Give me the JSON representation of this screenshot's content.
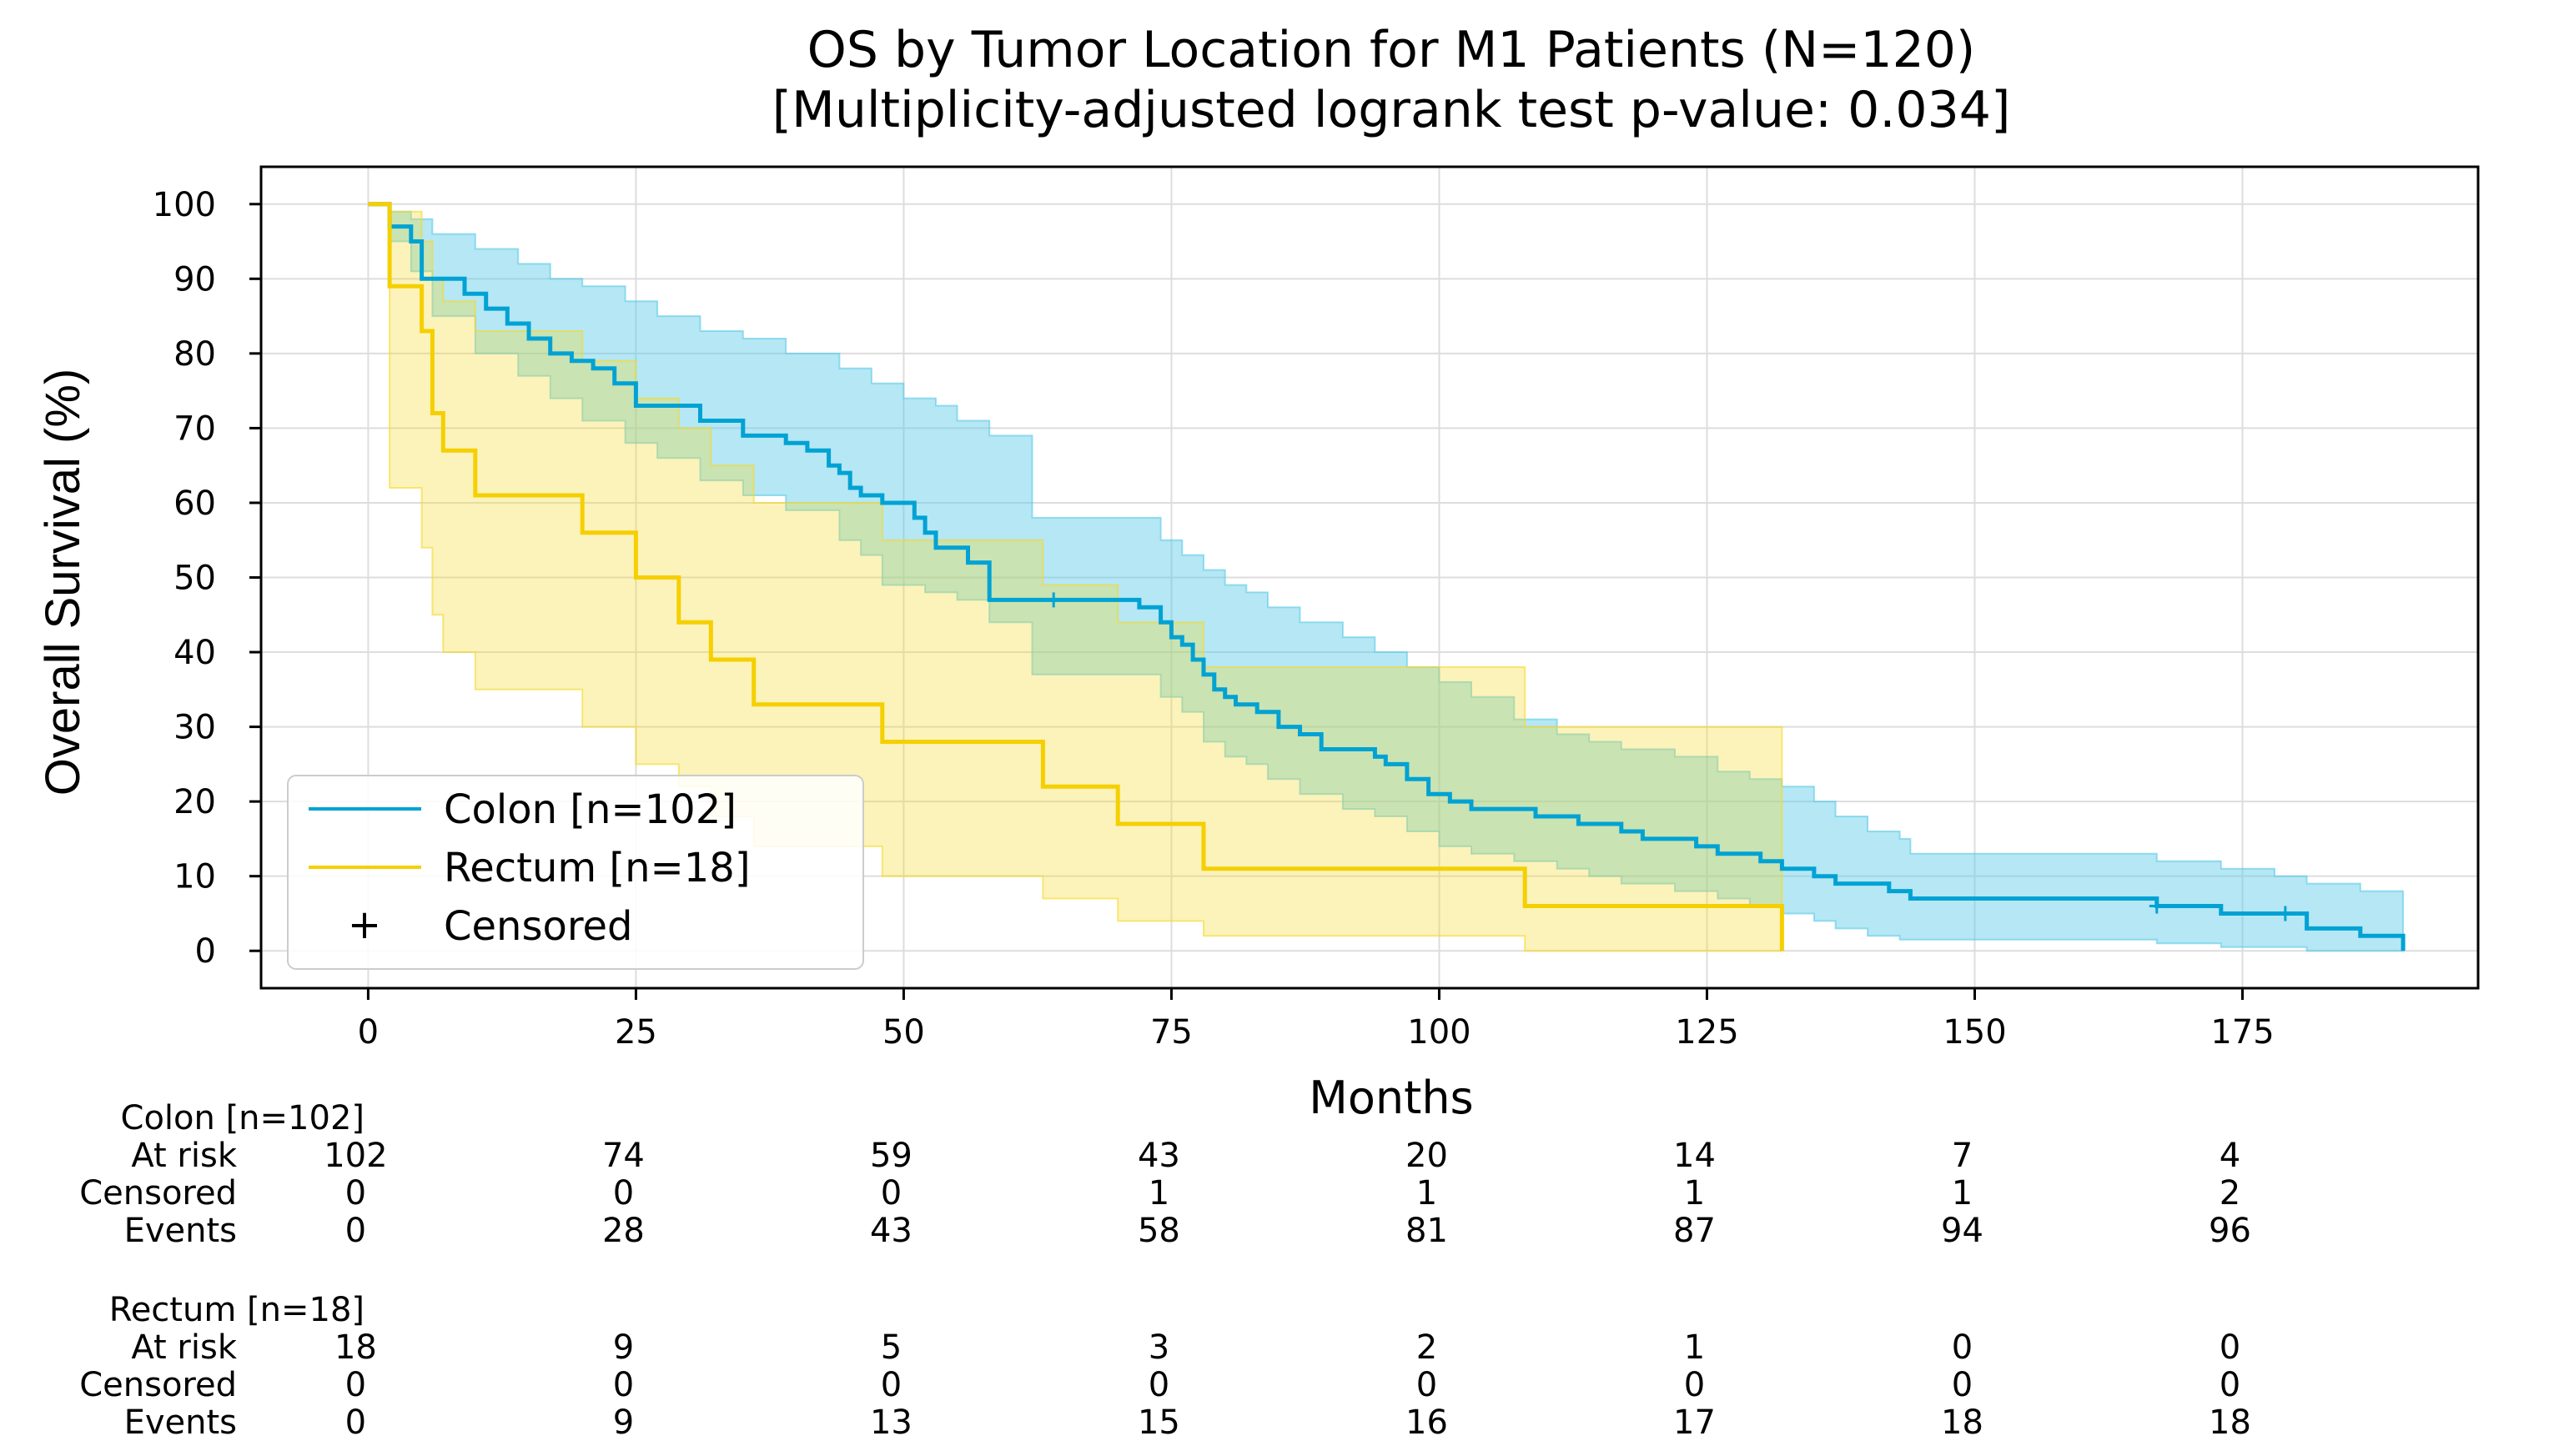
{
  "chart_data": {
    "type": "line",
    "subtype": "kaplan-meier",
    "title": "OS by Tumor Location for M1 Patients (N=120)",
    "subtitle": "[Multiplicity-adjusted logrank test p-value: 0.034]",
    "xlabel": "Months",
    "ylabel": "Overall Survival (%)",
    "xlim": [
      -10,
      197
    ],
    "ylim": [
      -5,
      105
    ],
    "xticks": [
      0,
      25,
      50,
      75,
      100,
      125,
      150,
      175
    ],
    "yticks": [
      0,
      10,
      20,
      30,
      40,
      50,
      60,
      70,
      80,
      90,
      100
    ],
    "grid": true,
    "legend_position": "lower-left",
    "series": [
      {
        "name": "Colon [n=102]",
        "color": "#00a2d3",
        "band_color": "#5ccae8",
        "steps": [
          [
            0,
            100
          ],
          [
            2,
            97
          ],
          [
            4,
            95
          ],
          [
            5,
            90
          ],
          [
            9,
            88
          ],
          [
            11,
            86
          ],
          [
            13,
            84
          ],
          [
            15,
            82
          ],
          [
            17,
            80
          ],
          [
            19,
            79
          ],
          [
            21,
            78
          ],
          [
            23,
            76
          ],
          [
            25,
            73
          ],
          [
            31,
            71
          ],
          [
            35,
            69
          ],
          [
            39,
            68
          ],
          [
            41,
            67
          ],
          [
            43,
            65
          ],
          [
            44,
            64
          ],
          [
            45,
            62
          ],
          [
            46,
            61
          ],
          [
            48,
            60
          ],
          [
            51,
            58
          ],
          [
            52,
            56
          ],
          [
            53,
            54
          ],
          [
            56,
            52
          ],
          [
            58,
            47
          ],
          [
            72,
            46
          ],
          [
            74,
            44
          ],
          [
            75,
            42
          ],
          [
            76,
            41
          ],
          [
            77,
            39
          ],
          [
            78,
            37
          ],
          [
            79,
            35
          ],
          [
            80,
            34
          ],
          [
            81,
            33
          ],
          [
            83,
            32
          ],
          [
            85,
            30
          ],
          [
            87,
            29
          ],
          [
            89,
            27
          ],
          [
            94,
            26
          ],
          [
            95,
            25
          ],
          [
            97,
            23
          ],
          [
            99,
            21
          ],
          [
            101,
            20
          ],
          [
            103,
            19
          ],
          [
            109,
            18
          ],
          [
            113,
            17
          ],
          [
            117,
            16
          ],
          [
            119,
            15
          ],
          [
            124,
            14
          ],
          [
            126,
            13
          ],
          [
            130,
            12
          ],
          [
            132,
            11
          ],
          [
            135,
            10
          ],
          [
            137,
            9
          ],
          [
            142,
            8
          ],
          [
            144,
            7
          ],
          [
            167,
            6
          ],
          [
            173,
            5
          ],
          [
            181,
            3
          ],
          [
            186,
            2
          ],
          [
            190,
            0
          ]
        ],
        "upper": [
          [
            0,
            100
          ],
          [
            2,
            99
          ],
          [
            4,
            98
          ],
          [
            6,
            96
          ],
          [
            10,
            94
          ],
          [
            14,
            92
          ],
          [
            17,
            90
          ],
          [
            20,
            89
          ],
          [
            24,
            87
          ],
          [
            27,
            85
          ],
          [
            31,
            83
          ],
          [
            35,
            82
          ],
          [
            39,
            80
          ],
          [
            44,
            78
          ],
          [
            47,
            76
          ],
          [
            50,
            74
          ],
          [
            53,
            73
          ],
          [
            55,
            71
          ],
          [
            58,
            69
          ],
          [
            62,
            58
          ],
          [
            70,
            58
          ],
          [
            74,
            55
          ],
          [
            76,
            53
          ],
          [
            78,
            51
          ],
          [
            80,
            49
          ],
          [
            82,
            48
          ],
          [
            84,
            46
          ],
          [
            87,
            44
          ],
          [
            91,
            42
          ],
          [
            94,
            40
          ],
          [
            97,
            38
          ],
          [
            100,
            36
          ],
          [
            103,
            34
          ],
          [
            107,
            31
          ],
          [
            111,
            29
          ],
          [
            114,
            28
          ],
          [
            117,
            27
          ],
          [
            122,
            26
          ],
          [
            126,
            24
          ],
          [
            129,
            23
          ],
          [
            132,
            22
          ],
          [
            135,
            20
          ],
          [
            137,
            18
          ],
          [
            140,
            16
          ],
          [
            143,
            15
          ],
          [
            144,
            13
          ],
          [
            167,
            12
          ],
          [
            173,
            11
          ],
          [
            178,
            10
          ],
          [
            181,
            9
          ],
          [
            186,
            8
          ],
          [
            190,
            8
          ]
        ],
        "lower": [
          [
            0,
            100
          ],
          [
            2,
            95
          ],
          [
            4,
            91
          ],
          [
            6,
            85
          ],
          [
            10,
            80
          ],
          [
            14,
            77
          ],
          [
            17,
            74
          ],
          [
            20,
            71
          ],
          [
            24,
            68
          ],
          [
            27,
            66
          ],
          [
            31,
            63
          ],
          [
            35,
            61
          ],
          [
            39,
            59
          ],
          [
            44,
            55
          ],
          [
            46,
            53
          ],
          [
            48,
            49
          ],
          [
            52,
            48
          ],
          [
            55,
            47
          ],
          [
            58,
            44
          ],
          [
            62,
            37
          ],
          [
            70,
            37
          ],
          [
            74,
            34
          ],
          [
            76,
            32
          ],
          [
            78,
            28
          ],
          [
            80,
            26
          ],
          [
            82,
            25
          ],
          [
            84,
            23
          ],
          [
            87,
            21
          ],
          [
            91,
            19
          ],
          [
            94,
            18
          ],
          [
            97,
            16
          ],
          [
            100,
            14
          ],
          [
            103,
            13
          ],
          [
            107,
            12
          ],
          [
            111,
            11
          ],
          [
            114,
            10
          ],
          [
            117,
            9
          ],
          [
            122,
            8
          ],
          [
            126,
            7
          ],
          [
            129,
            6
          ],
          [
            132,
            5
          ],
          [
            135,
            4
          ],
          [
            137,
            3
          ],
          [
            140,
            2
          ],
          [
            143,
            1.5
          ],
          [
            167,
            1
          ],
          [
            173,
            0.5
          ],
          [
            181,
            0
          ],
          [
            190,
            0
          ]
        ],
        "censored": [
          [
            64,
            47
          ],
          [
            167,
            6
          ],
          [
            179,
            5
          ]
        ]
      },
      {
        "name": "Rectum [n=18]",
        "color": "#f5cf00",
        "band_color": "#f5d928",
        "steps": [
          [
            0,
            100
          ],
          [
            2,
            89
          ],
          [
            5,
            83
          ],
          [
            6,
            72
          ],
          [
            7,
            67
          ],
          [
            10,
            61
          ],
          [
            20,
            56
          ],
          [
            25,
            50
          ],
          [
            29,
            44
          ],
          [
            32,
            39
          ],
          [
            36,
            33
          ],
          [
            48,
            28
          ],
          [
            63,
            22
          ],
          [
            70,
            17
          ],
          [
            78,
            11
          ],
          [
            108,
            6
          ],
          [
            132,
            0
          ]
        ],
        "upper": [
          [
            0,
            100
          ],
          [
            2,
            99
          ],
          [
            5,
            95
          ],
          [
            6,
            90
          ],
          [
            7,
            87
          ],
          [
            10,
            83
          ],
          [
            20,
            79
          ],
          [
            25,
            74
          ],
          [
            29,
            70
          ],
          [
            32,
            65
          ],
          [
            36,
            60
          ],
          [
            48,
            55
          ],
          [
            63,
            49
          ],
          [
            70,
            44
          ],
          [
            78,
            38
          ],
          [
            108,
            30
          ],
          [
            132,
            22
          ]
        ],
        "lower": [
          [
            0,
            100
          ],
          [
            2,
            62
          ],
          [
            5,
            54
          ],
          [
            6,
            45
          ],
          [
            7,
            40
          ],
          [
            10,
            35
          ],
          [
            20,
            30
          ],
          [
            25,
            25
          ],
          [
            29,
            22
          ],
          [
            32,
            18
          ],
          [
            36,
            14
          ],
          [
            48,
            10
          ],
          [
            63,
            7
          ],
          [
            70,
            4
          ],
          [
            78,
            2
          ],
          [
            108,
            0
          ],
          [
            132,
            0
          ]
        ],
        "censored": []
      }
    ],
    "legend_censored_label": "Censored",
    "risk_table": {
      "times": [
        0,
        25,
        50,
        75,
        100,
        125,
        150,
        175
      ],
      "row_labels": [
        "At risk",
        "Censored",
        "Events"
      ],
      "groups": [
        {
          "name": "Colon [n=102]",
          "at_risk": [
            "102",
            "74",
            "59",
            "43",
            "20",
            "14",
            "7",
            "4"
          ],
          "censored": [
            "0",
            "0",
            "0",
            "1",
            "1",
            "1",
            "1",
            "2"
          ],
          "events": [
            "0",
            "28",
            "43",
            "58",
            "81",
            "87",
            "94",
            "96"
          ]
        },
        {
          "name": "Rectum [n=18]",
          "at_risk": [
            "18",
            "9",
            "5",
            "3",
            "2",
            "1",
            "0",
            "0"
          ],
          "censored": [
            "0",
            "0",
            "0",
            "0",
            "0",
            "0",
            "0",
            "0"
          ],
          "events": [
            "0",
            "9",
            "13",
            "15",
            "16",
            "17",
            "18",
            "18"
          ]
        }
      ]
    }
  }
}
